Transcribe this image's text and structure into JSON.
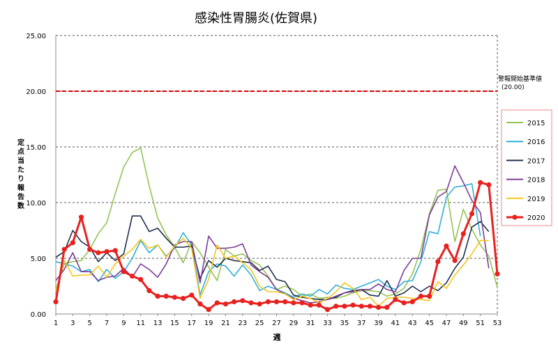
{
  "chart_data": {
    "type": "line",
    "title": "感染性胃腸炎(佐賀県)",
    "xlabel": "週",
    "ylabel": "定点当たり報告数",
    "ylim": [
      0,
      25
    ],
    "xlim": [
      1,
      53
    ],
    "yticks": [
      "0.00",
      "5.00",
      "10.00",
      "15.00",
      "20.00",
      "25.00"
    ],
    "xticks": [
      1,
      3,
      5,
      7,
      9,
      11,
      13,
      15,
      17,
      19,
      21,
      23,
      25,
      27,
      29,
      31,
      33,
      35,
      37,
      39,
      41,
      43,
      45,
      47,
      49,
      51,
      53
    ],
    "grid": "horizontal-dashed",
    "threshold": {
      "value": 20,
      "label_line1": "警報開始基準値",
      "label_line2": "(20.00)",
      "color": "#e00000"
    },
    "legend_position": "right",
    "series": [
      {
        "name": "2015",
        "color": "#92c353",
        "values": [
          2.2,
          4.5,
          4.7,
          4.8,
          5.8,
          7.2,
          8.2,
          10.8,
          13.2,
          14.5,
          14.9,
          11.5,
          8.6,
          7.1,
          6.0,
          4.6,
          6.5,
          5.5,
          4.2,
          3.0,
          5.8,
          5.2,
          5.4,
          4.8,
          4.4,
          3.4,
          2.2,
          2.5,
          2.2,
          1.6,
          1.8,
          1.4,
          1.5,
          1.4,
          1.6,
          1.9,
          2.1,
          2.1,
          2.0,
          1.6,
          1.8,
          2.3,
          3.6,
          5.8,
          9.0,
          11.1,
          11.2,
          6.5,
          9.4,
          7.6,
          6.2,
          5.2,
          2.4
        ]
      },
      {
        "name": "2016",
        "color": "#2fb0d6",
        "values": [
          4.7,
          4.5,
          4.3,
          3.8,
          4.0,
          2.9,
          4.0,
          3.2,
          3.8,
          5.0,
          6.6,
          5.5,
          6.2,
          5.2,
          5.9,
          7.3,
          6.2,
          1.7,
          3.8,
          4.5,
          4.3,
          3.4,
          4.4,
          3.5,
          2.1,
          2.5,
          2.2,
          1.9,
          1.5,
          1.8,
          1.6,
          2.2,
          1.8,
          2.6,
          2.3,
          2.2,
          2.5,
          2.8,
          3.1,
          2.5,
          2.2,
          2.9,
          3.0,
          4.7,
          7.4,
          7.2,
          10.5,
          11.4,
          11.5,
          11.7,
          7.0
        ]
      },
      {
        "name": "2017",
        "color": "#1f2f4e",
        "values": [
          5.1,
          5.6,
          7.5,
          6.5,
          6.0,
          4.7,
          5.5,
          4.8,
          5.4,
          8.8,
          8.8,
          7.4,
          7.7,
          6.8,
          6.0,
          6.0,
          6.1,
          3.2,
          4.8,
          4.2,
          5.0,
          4.8,
          4.7,
          4.6,
          3.9,
          4.3,
          3.1,
          2.9,
          1.7,
          1.5,
          1.4,
          1.3,
          1.3,
          1.5,
          1.9,
          2.1,
          2.2,
          1.7,
          1.6,
          3.0,
          1.6,
          1.9,
          2.5,
          2.0,
          2.5,
          2.1,
          2.8,
          4.1,
          5.1,
          7.8,
          8.3,
          7.4
        ]
      },
      {
        "name": "2018",
        "color": "#7d3c98",
        "values": [
          3.0,
          4.0,
          5.5,
          3.8,
          3.8,
          3.0,
          3.3,
          3.4,
          4.1,
          3.3,
          4.5,
          4.0,
          3.3,
          4.5,
          6.2,
          6.5,
          6.5,
          2.8,
          7.0,
          5.9,
          5.9,
          6.0,
          6.3,
          4.4,
          3.8,
          3.3,
          2.2,
          1.8,
          1.4,
          1.2,
          1.0,
          1.1,
          1.3,
          1.6,
          1.9,
          2.0,
          2.2,
          2.2,
          2.7,
          2.2,
          2.0,
          3.9,
          5.0,
          5.0,
          8.9,
          10.5,
          11.0,
          13.3,
          11.8,
          10.2,
          9.1,
          4.1
        ]
      },
      {
        "name": "2019",
        "color": "#f5c518",
        "values": [
          2.0,
          4.8,
          3.4,
          3.5,
          3.5,
          4.3,
          3.3,
          4.5,
          5.2,
          5.8,
          6.7,
          5.9,
          6.2,
          5.1,
          6.1,
          6.8,
          5.9,
          1.4,
          3.1,
          6.2,
          5.0,
          5.2,
          4.6,
          4.0,
          2.5,
          2.0,
          2.0,
          1.8,
          1.3,
          1.6,
          1.4,
          1.0,
          1.4,
          2.0,
          2.8,
          2.3,
          1.3,
          1.5,
          0.7,
          1.4,
          1.5,
          1.5,
          1.4,
          1.3,
          1.2,
          2.9,
          2.3,
          3.5,
          4.4,
          5.4,
          6.6,
          6.6
        ]
      },
      {
        "name": "2020",
        "color": "#e8201e",
        "values": [
          1.1,
          5.8,
          6.4,
          8.7,
          5.8,
          5.5,
          5.6,
          5.7,
          3.8,
          3.4,
          3.1,
          2.1,
          1.6,
          1.6,
          1.5,
          1.4,
          1.7,
          0.9,
          0.4,
          1.0,
          0.9,
          1.1,
          1.2,
          1.0,
          0.9,
          1.1,
          1.1,
          1.1,
          1.0,
          1.0,
          0.8,
          0.8,
          0.4,
          0.7,
          0.7,
          0.8,
          0.7,
          0.7,
          0.6,
          0.6,
          1.3,
          1.0,
          1.1,
          1.6,
          1.6,
          4.7,
          6.1,
          4.8,
          7.2,
          9.0,
          11.8,
          11.6,
          3.6
        ]
      }
    ]
  }
}
